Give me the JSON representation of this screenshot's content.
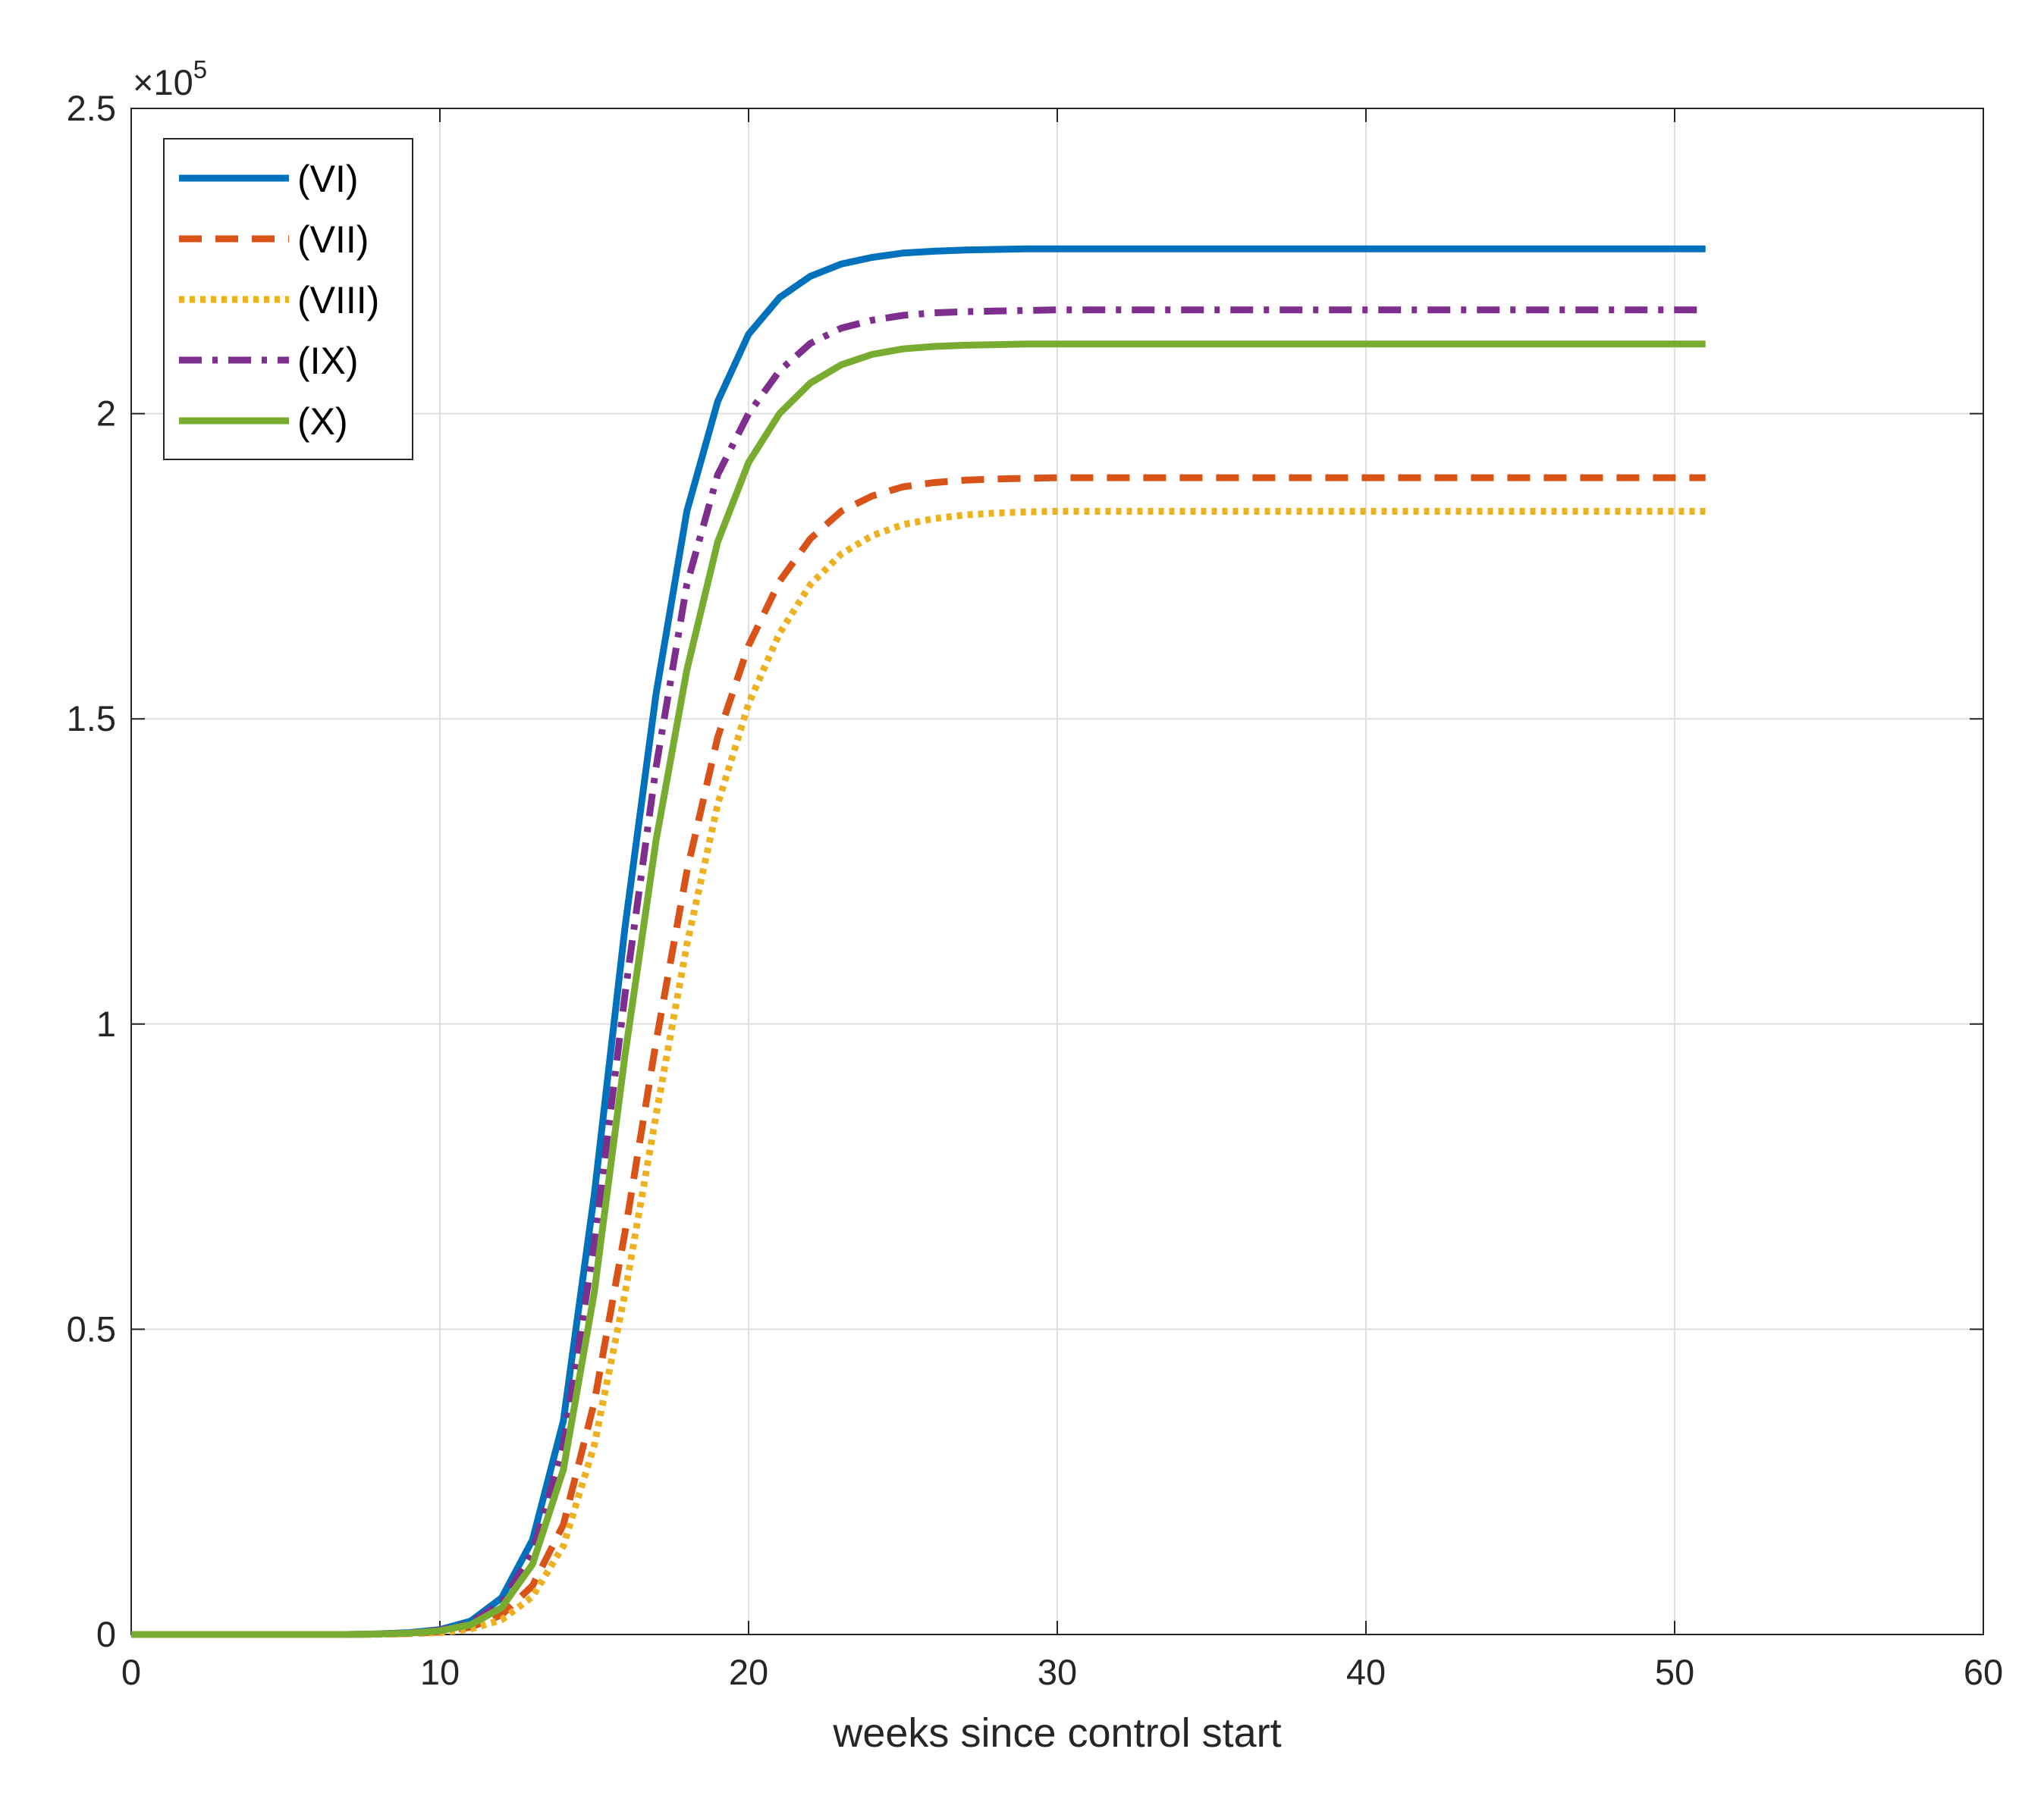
{
  "chart_data": {
    "type": "line",
    "title": "",
    "xlabel": "weeks since control start",
    "ylabel": "",
    "y_multiplier_label": "×10",
    "y_multiplier_exponent": "5",
    "xlim": [
      0,
      60
    ],
    "ylim": [
      0,
      2.5
    ],
    "xticks": [
      0,
      10,
      20,
      30,
      40,
      50,
      60
    ],
    "xtick_labels": [
      "0",
      "10",
      "20",
      "30",
      "40",
      "50",
      "60"
    ],
    "yticks": [
      0,
      0.5,
      1,
      1.5,
      2,
      2.5
    ],
    "ytick_labels": [
      "0",
      "0.5",
      "1",
      "1.5",
      "2",
      "2.5"
    ],
    "grid": true,
    "legend_position": "top-left",
    "x": [
      0,
      1,
      2,
      3,
      4,
      5,
      6,
      7,
      8,
      9,
      10,
      11,
      12,
      13,
      14,
      15,
      16,
      17,
      18,
      19,
      20,
      21,
      22,
      23,
      24,
      25,
      26,
      27,
      28,
      29,
      30,
      31,
      32,
      33,
      34,
      35,
      36,
      37,
      38,
      39,
      40,
      41,
      42,
      43,
      44,
      45,
      46,
      47,
      48,
      49,
      50,
      51
    ],
    "series": [
      {
        "name": "(VI)",
        "color": "#0072BD",
        "style": "solid",
        "values": [
          0,
          0,
          0,
          0,
          0,
          0,
          0,
          0,
          0.001,
          0.003,
          0.008,
          0.022,
          0.06,
          0.155,
          0.35,
          0.72,
          1.16,
          1.54,
          1.84,
          2.02,
          2.13,
          2.19,
          2.225,
          2.245,
          2.256,
          2.263,
          2.266,
          2.268,
          2.269,
          2.27,
          2.27,
          2.27,
          2.27,
          2.27,
          2.27,
          2.27,
          2.27,
          2.27,
          2.27,
          2.27,
          2.27,
          2.27,
          2.27,
          2.27,
          2.27,
          2.27,
          2.27,
          2.27,
          2.27,
          2.27,
          2.27,
          2.27
        ]
      },
      {
        "name": "(VII)",
        "color": "#D95319",
        "style": "dashed",
        "values": [
          0,
          0,
          0,
          0,
          0,
          0,
          0,
          0,
          0.0005,
          0.0015,
          0.004,
          0.012,
          0.032,
          0.08,
          0.18,
          0.38,
          0.66,
          0.97,
          1.25,
          1.47,
          1.62,
          1.725,
          1.795,
          1.84,
          1.865,
          1.88,
          1.887,
          1.891,
          1.893,
          1.894,
          1.895,
          1.895,
          1.895,
          1.895,
          1.895,
          1.895,
          1.895,
          1.895,
          1.895,
          1.895,
          1.895,
          1.895,
          1.895,
          1.895,
          1.895,
          1.895,
          1.895,
          1.895,
          1.895,
          1.895,
          1.895,
          1.895
        ]
      },
      {
        "name": "(VIII)",
        "color": "#EDB120",
        "style": "dotted",
        "values": [
          0,
          0,
          0,
          0,
          0,
          0,
          0,
          0,
          0.0004,
          0.0012,
          0.003,
          0.009,
          0.024,
          0.062,
          0.145,
          0.31,
          0.56,
          0.85,
          1.13,
          1.36,
          1.525,
          1.64,
          1.72,
          1.77,
          1.8,
          1.818,
          1.828,
          1.834,
          1.837,
          1.839,
          1.84,
          1.84,
          1.84,
          1.84,
          1.84,
          1.84,
          1.84,
          1.84,
          1.84,
          1.84,
          1.84,
          1.84,
          1.84,
          1.84,
          1.84,
          1.84,
          1.84,
          1.84,
          1.84,
          1.84,
          1.84,
          1.84
        ]
      },
      {
        "name": "(IX)",
        "color": "#7E2F8E",
        "style": "dashdot",
        "values": [
          0,
          0,
          0,
          0,
          0,
          0,
          0,
          0,
          0.001,
          0.0025,
          0.007,
          0.019,
          0.052,
          0.135,
          0.31,
          0.64,
          1.05,
          1.42,
          1.72,
          1.9,
          2.0,
          2.07,
          2.115,
          2.14,
          2.153,
          2.161,
          2.165,
          2.167,
          2.168,
          2.169,
          2.17,
          2.17,
          2.17,
          2.17,
          2.17,
          2.17,
          2.17,
          2.17,
          2.17,
          2.17,
          2.17,
          2.17,
          2.17,
          2.17,
          2.17,
          2.17,
          2.17,
          2.17,
          2.17,
          2.17,
          2.17,
          2.17
        ]
      },
      {
        "name": "(X)",
        "color": "#77AC30",
        "style": "solid",
        "values": [
          0,
          0,
          0,
          0,
          0,
          0,
          0,
          0,
          0.0008,
          0.002,
          0.006,
          0.016,
          0.044,
          0.115,
          0.27,
          0.56,
          0.95,
          1.3,
          1.58,
          1.79,
          1.92,
          2.0,
          2.05,
          2.08,
          2.097,
          2.106,
          2.11,
          2.112,
          2.113,
          2.114,
          2.114,
          2.114,
          2.114,
          2.114,
          2.114,
          2.114,
          2.114,
          2.114,
          2.114,
          2.114,
          2.114,
          2.114,
          2.114,
          2.114,
          2.114,
          2.114,
          2.114,
          2.114,
          2.114,
          2.114,
          2.114,
          2.114
        ]
      }
    ]
  }
}
